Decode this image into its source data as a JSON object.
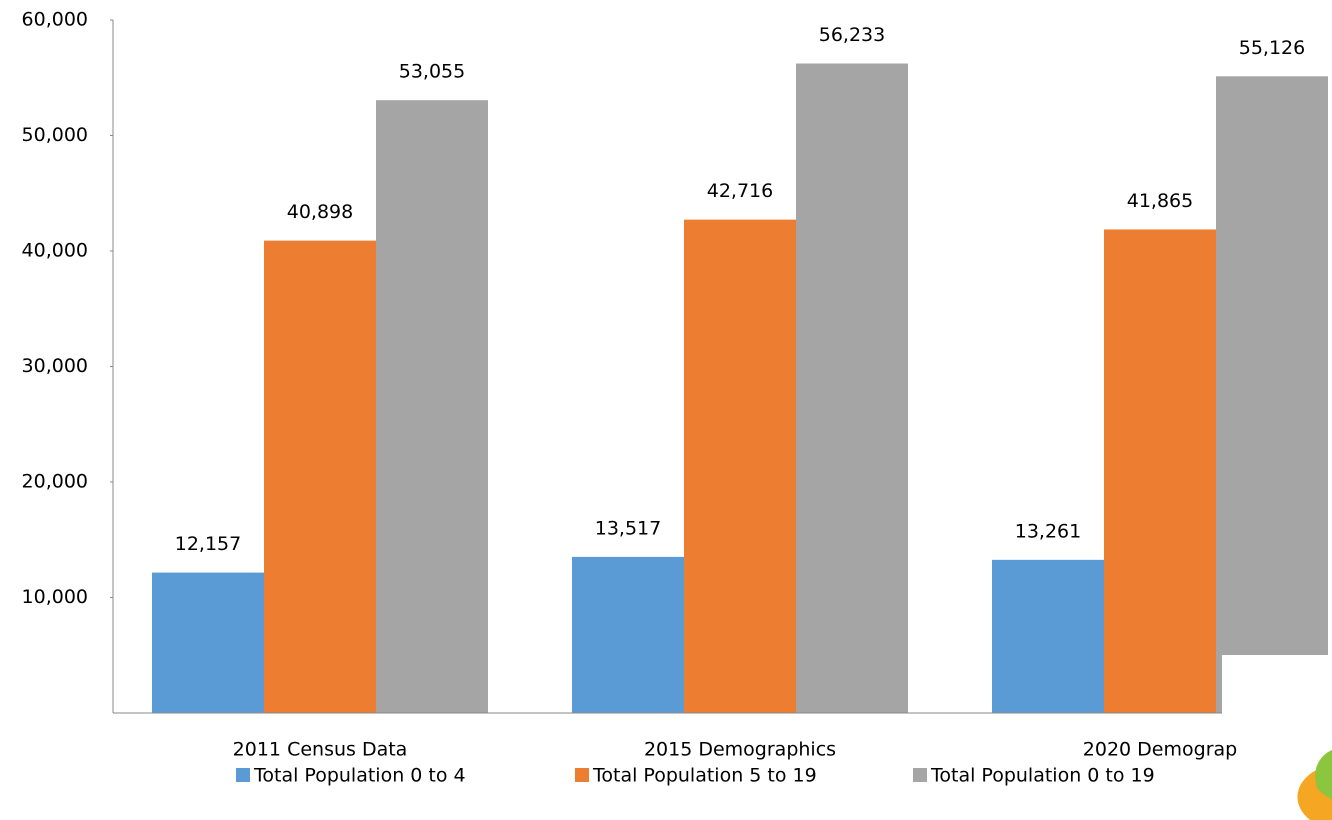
{
  "chart_data": {
    "type": "bar",
    "categories": [
      "2011 Census Data",
      "2015 Demographics",
      "2020 Demograp"
    ],
    "series": [
      {
        "name": "Total Population 0 to 4",
        "color": "#5b9bd5",
        "values": [
          12157,
          13517,
          13261
        ],
        "value_labels": [
          "12,157",
          "13,517",
          "13,261"
        ]
      },
      {
        "name": "Total Population 5 to 19",
        "color": "#ed7d31",
        "values": [
          40898,
          42716,
          41865
        ],
        "value_labels": [
          "40,898",
          "42,716",
          "41,865"
        ]
      },
      {
        "name": "Total Population 0 to 19",
        "color": "#a5a5a5",
        "values": [
          53055,
          56233,
          55126
        ],
        "value_labels": [
          "53,055",
          "56,233",
          "55,126"
        ]
      }
    ],
    "ylim": [
      0,
      60000
    ],
    "yticks": [
      {
        "value": 10000,
        "label": "10,000"
      },
      {
        "value": 20000,
        "label": "20,000"
      },
      {
        "value": 30000,
        "label": "30,000"
      },
      {
        "value": 40000,
        "label": "40,000"
      },
      {
        "value": 50000,
        "label": "50,000"
      },
      {
        "value": 60000,
        "label": "60,000"
      }
    ],
    "legend": "bottom",
    "grid": false
  }
}
